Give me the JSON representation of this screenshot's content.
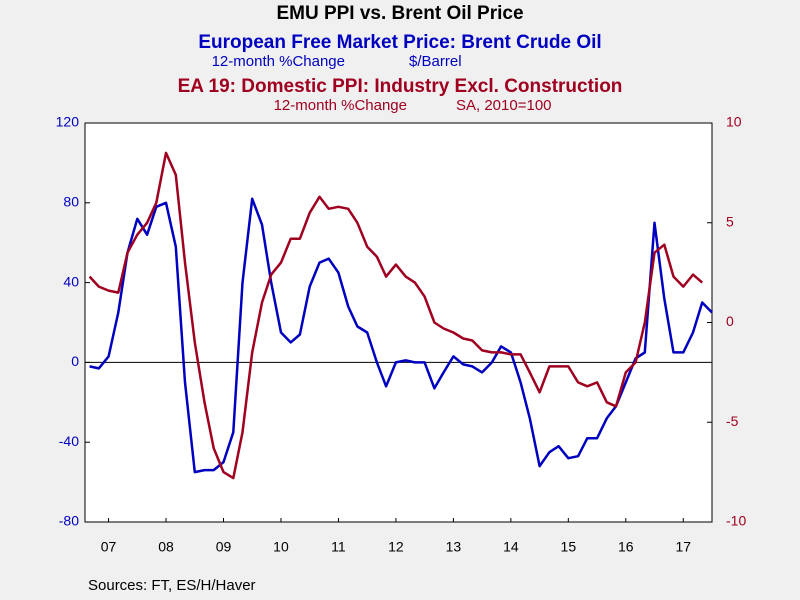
{
  "chart_data": {
    "type": "line",
    "title": "EMU PPI vs. Brent Oil Price",
    "source": "Sources:  FT, ES/H/Haver",
    "x": [
      2007.17,
      2007.33,
      2007.5,
      2007.67,
      2007.83,
      2008.0,
      2008.17,
      2008.33,
      2008.5,
      2008.67,
      2008.83,
      2009.0,
      2009.17,
      2009.33,
      2009.5,
      2009.67,
      2009.83,
      2010.0,
      2010.17,
      2010.33,
      2010.5,
      2010.67,
      2010.83,
      2011.0,
      2011.17,
      2011.33,
      2011.5,
      2011.67,
      2011.83,
      2012.0,
      2012.17,
      2012.33,
      2012.5,
      2012.67,
      2012.83,
      2013.0,
      2013.17,
      2013.33,
      2013.5,
      2013.67,
      2013.83,
      2014.0,
      2014.17,
      2014.33,
      2014.5,
      2014.67,
      2014.83,
      2015.0,
      2015.17,
      2015.33,
      2015.5,
      2015.67,
      2015.83,
      2016.0,
      2016.17,
      2016.33,
      2016.5,
      2016.67,
      2016.83,
      2017.0,
      2017.17,
      2017.33,
      2017.5,
      2017.67,
      2017.83,
      2018.0
    ],
    "xlim": [
      2007.09,
      2018.0
    ],
    "xticks": [
      {
        "value": 2007.5,
        "label": "07"
      },
      {
        "value": 2008.5,
        "label": "08"
      },
      {
        "value": 2009.5,
        "label": "09"
      },
      {
        "value": 2010.5,
        "label": "10"
      },
      {
        "value": 2011.5,
        "label": "11"
      },
      {
        "value": 2012.5,
        "label": "12"
      },
      {
        "value": 2013.5,
        "label": "13"
      },
      {
        "value": 2014.5,
        "label": "14"
      },
      {
        "value": 2015.5,
        "label": "15"
      },
      {
        "value": 2016.5,
        "label": "16"
      },
      {
        "value": 2017.5,
        "label": "17"
      }
    ],
    "ylim": [
      -80,
      120
    ],
    "yticks": [
      -80,
      -40,
      0,
      40,
      80,
      120
    ],
    "y2lim": [
      -10,
      10
    ],
    "y2ticks": [
      -10,
      -5,
      0,
      5,
      10
    ],
    "zero_line": true,
    "series": [
      {
        "name": "European Free Market Price: Brent Crude Oil",
        "units": [
          "12-month %Change",
          "$/Barrel"
        ],
        "color": "#0000c0",
        "axis": "y",
        "values": [
          -2,
          -3,
          3,
          25,
          55,
          72,
          64,
          78,
          80,
          58,
          -10,
          -55,
          -54,
          -54,
          -50,
          -35,
          40,
          82,
          69,
          40,
          15,
          10,
          14,
          38,
          50,
          52,
          45,
          28,
          18,
          15,
          0,
          -12,
          0,
          1,
          0,
          0,
          -13,
          -5,
          3,
          -1,
          -2,
          -5,
          0,
          8,
          5,
          -10,
          -28,
          -52,
          -45,
          -42,
          -48,
          -47,
          -38,
          -38,
          -28,
          -22,
          -10,
          2,
          5,
          70,
          32,
          5,
          5,
          15,
          30,
          25
        ]
      },
      {
        "name": "EA 19: Domestic PPI: Industry Excl. Construction",
        "units": [
          "12-month %Change",
          "SA, 2010=100"
        ],
        "color": "#a00020",
        "axis": "y2",
        "values": [
          2.3,
          1.8,
          1.6,
          1.5,
          3.5,
          4.4,
          5.0,
          6.0,
          8.5,
          7.4,
          3.0,
          -1.0,
          -4.0,
          -6.3,
          -7.5,
          -7.8,
          -5.5,
          -1.5,
          1.0,
          2.4,
          3.0,
          4.2,
          4.2,
          5.5,
          6.3,
          5.7,
          5.8,
          5.7,
          5.0,
          3.8,
          3.3,
          2.3,
          2.9,
          2.3,
          2.0,
          1.3,
          0,
          -0.3,
          -0.5,
          -0.8,
          -0.9,
          -1.4,
          -1.5,
          -1.5,
          -1.6,
          -1.6,
          -2.5,
          -3.5,
          -2.2,
          -2.2,
          -2.2,
          -3.0,
          -3.2,
          -3.0,
          -4.0,
          -4.2,
          -2.5,
          -2.0,
          0,
          3.5,
          3.9,
          2.3,
          1.8,
          2.4,
          2.0,
          null
        ]
      }
    ]
  }
}
